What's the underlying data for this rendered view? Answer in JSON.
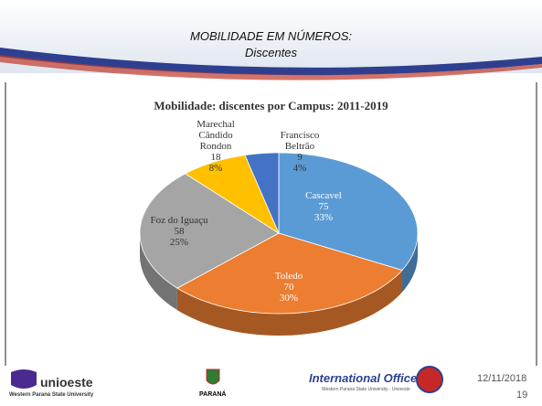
{
  "header": {
    "title": "MOBILIDADE EM NÚMEROS:",
    "subtitle": "Discentes"
  },
  "chart_data": {
    "type": "pie",
    "title": "Mobilidade: discentes por Campus: 2011-2019",
    "categories": [
      "Cascavel",
      "Toledo",
      "Foz do Iguaçu",
      "Marechal\nCândido\nRondon",
      "Francisco\nBeltrão"
    ],
    "values": [
      75,
      70,
      58,
      18,
      9
    ],
    "percent_labels": [
      "33%",
      "30%",
      "25%",
      "8%",
      "4%"
    ],
    "colors": [
      "#5b9bd5",
      "#ed7d31",
      "#a5a5a5",
      "#ffc000",
      "#4472c4"
    ]
  },
  "footer": {
    "logo_left": "unioeste",
    "logo_left_sub": "Western Paraná State University",
    "logo_center": "PARANÁ",
    "logo_right": "International Office",
    "logo_right_sub": "Western Paraná State University - Unioeste",
    "date": "12/11/2018",
    "page": "19"
  }
}
